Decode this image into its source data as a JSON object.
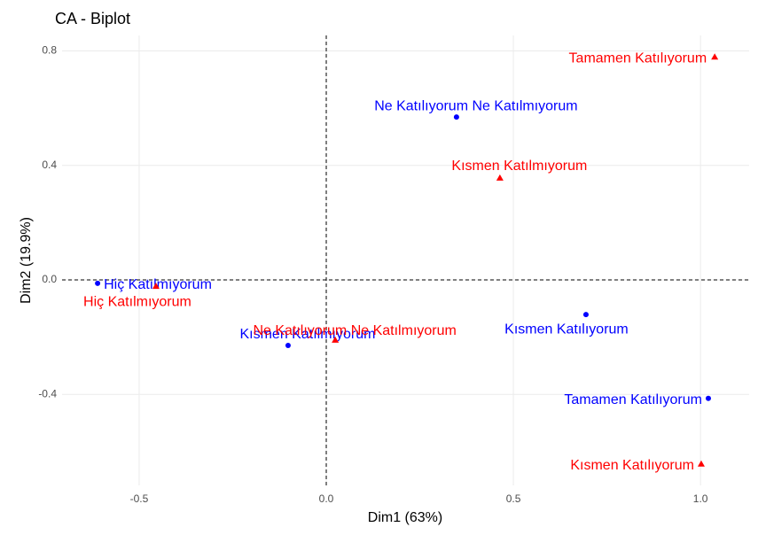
{
  "chart_data": {
    "type": "scatter",
    "title": "CA - Biplot",
    "x_label": "Dim1 (63%)",
    "y_label": "Dim2 (19.9%)",
    "xlim": [
      -0.706,
      1.13
    ],
    "ylim": [
      -0.718,
      0.854
    ],
    "xticks": [
      -0.5,
      {
        "value": 0,
        "label": "0.0"
      },
      0.5,
      {
        "value": 1,
        "label": "1.0"
      }
    ],
    "yticks": [
      -0.4,
      {
        "value": 0,
        "label": "0.0"
      },
      0.4,
      0.8
    ],
    "grid": true,
    "hline": 0,
    "vline": 0,
    "series": [
      {
        "color": "#0000ff",
        "marker": "circle",
        "labels": [
          "Ne Katılıyorum Ne Katılmıyorum",
          "Hiç Katılmıyorum",
          "Kısmen Katılmıyorum",
          "Kısmen Katılıyorum",
          "Tamamen Katılıyorum"
        ],
        "x": [
          0.348,
          -0.611,
          -0.102,
          0.694,
          1.021
        ],
        "values": [
          0.569,
          -0.012,
          -0.229,
          -0.121,
          -0.414
        ]
      },
      {
        "color": "#ff0000",
        "marker": "triangle",
        "labels": [
          "Tamamen Katılıyorum",
          "Kısmen Katılmıyorum",
          "Hiç Katılmıyorum",
          "Ne Katılıyorum Ne Katılmıyorum",
          "Kısmen Katılıyorum"
        ],
        "x": [
          1.038,
          0.464,
          -0.455,
          0.024,
          1.002
        ],
        "values": [
          0.779,
          0.356,
          -0.022,
          -0.21,
          -0.643
        ]
      }
    ]
  }
}
